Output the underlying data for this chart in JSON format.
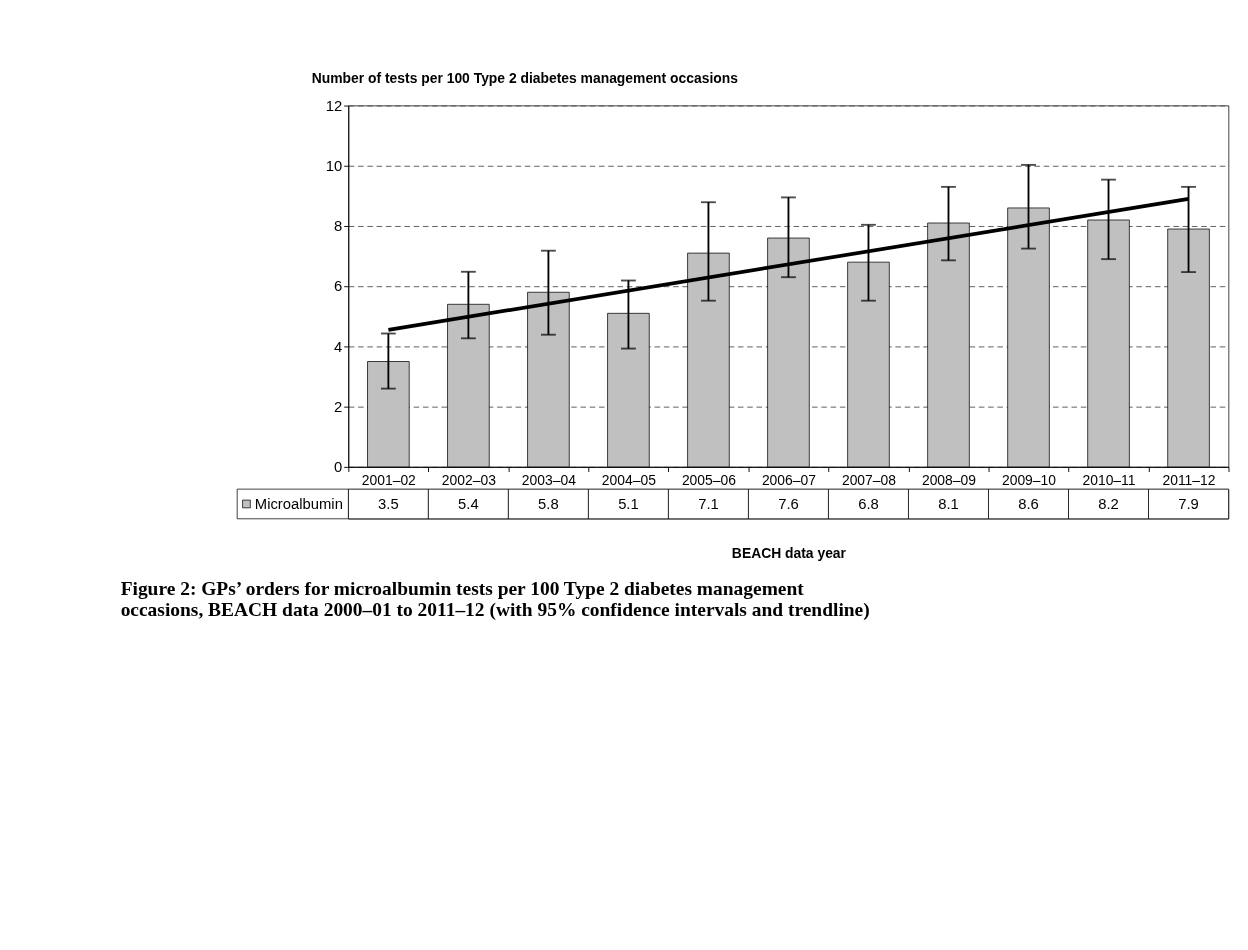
{
  "chart_data": {
    "type": "bar",
    "ylabel": "Number of tests per 100 Type 2 diabetes management occasions",
    "xlabel": "BEACH data year",
    "annotations": [
      "Figure 2: GPs’ orders for microalbumin tests per 100 Type 2 diabetes management occasions, BEACH data 2000–01 to 2011–12 (with 95% confidence intervals and trendline)"
    ],
    "categories": [
      "2001–02",
      "2002–03",
      "2003–04",
      "2004–05",
      "2005–06",
      "2006–07",
      "2007–08",
      "2008–09",
      "2009–10",
      "2010–11",
      "2011–12"
    ],
    "series": [
      {
        "name": "Microalbumin",
        "color": "#c0c0c0",
        "values": [
          3.5,
          5.4,
          5.8,
          5.1,
          7.1,
          7.6,
          6.8,
          8.1,
          8.6,
          8.2,
          7.9
        ],
        "value_labels": [
          "3.5",
          "5.4",
          "5.8",
          "5.1",
          "7.1",
          "7.6",
          "6.8",
          "8.1",
          "8.6",
          "8.2",
          "7.9"
        ],
        "errors": [
          [
            2.6,
            4.43
          ],
          [
            4.27,
            6.48
          ],
          [
            4.39,
            7.18
          ],
          [
            3.93,
            6.19
          ],
          [
            5.52,
            8.79
          ],
          [
            6.3,
            8.95
          ],
          [
            5.52,
            8.04
          ],
          [
            6.86,
            9.3
          ],
          [
            7.25,
            10.03
          ],
          [
            6.9,
            9.54
          ],
          [
            6.47,
            9.3
          ]
        ]
      },
      {
        "type": "line",
        "color": "#000000",
        "x": [
          "2001–02",
          "2011–12"
        ],
        "values": [
          4.55,
          8.9
        ]
      }
    ],
    "ylim": [
      0,
      12
    ],
    "yticks": [
      0,
      2,
      4,
      6,
      8,
      10,
      12
    ],
    "grid": "y",
    "legend": "bottom"
  }
}
